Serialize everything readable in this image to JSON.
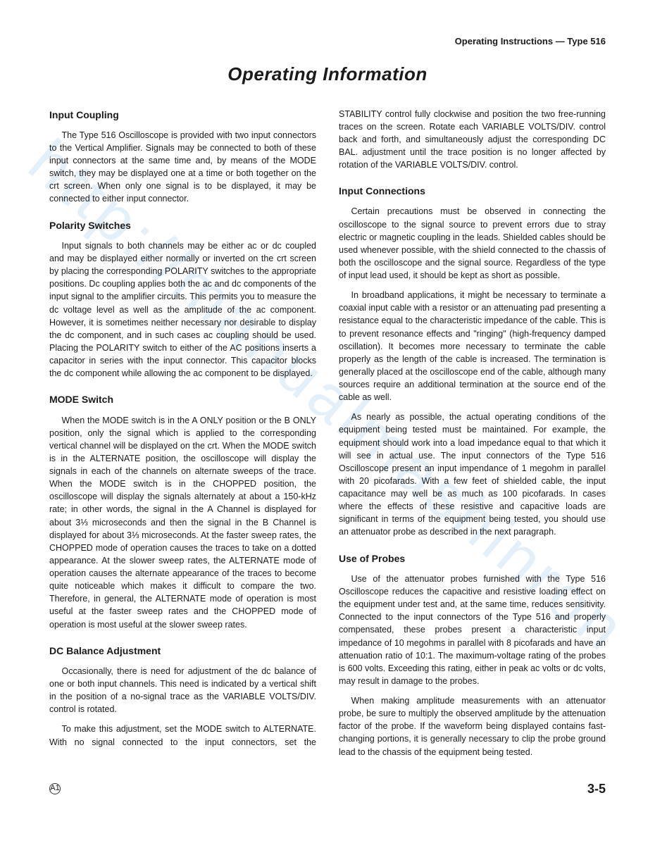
{
  "header": {
    "right": "Operating Instructions — Type 516"
  },
  "title": "Operating Information",
  "watermark": "http://manualmashinron",
  "sections": [
    {
      "heading": "Input Coupling",
      "paragraphs": [
        "The Type 516 Oscilloscope is provided with two input connectors to the Vertical Amplifier. Signals may be connected to both of these input connectors at the same time and, by means of the MODE switch, they may be displayed one at a time or both together on the crt screen. When only one signal is to be displayed, it may be connected to either input connector."
      ]
    },
    {
      "heading": "Polarity Switches",
      "paragraphs": [
        "Input signals to both channels may be either ac or dc coupled and may be displayed either normally or inverted on the crt screen by placing the corresponding POLARITY switches to the appropriate positions. Dc coupling applies both the ac and dc components of the input signal to the amplifier circuits. This permits you to measure the dc voltage level as well as the amplitude of the ac component. However, it is sometimes neither necessary nor desirable to display the dc component, and in such cases ac coupling should be used. Placing the POLARITY switch to either of the AC positions inserts a capacitor in series with the input connector. This capacitor blocks the dc component while allowing the ac component to be displayed."
      ]
    },
    {
      "heading": "MODE Switch",
      "paragraphs": [
        "When the MODE switch is in the A ONLY position or the B ONLY position, only the signal which is applied to the corresponding vertical channel will be displayed on the crt. When the MODE switch is in the ALTERNATE position, the oscilloscope will display the signals in each of the channels on alternate sweeps of the trace. When the MODE switch is in the CHOPPED position, the oscilloscope will display the signals alternately at about a 150-kHz rate; in other words, the signal in the A Channel is displayed for about 3⅓ microseconds and then the signal in the B Channel is displayed for about 3⅓ microseconds. At the faster sweep rates, the CHOPPED mode of operation causes the traces to take on a dotted appearance. At the slower sweep rates, the ALTERNATE mode of operation causes the alternate appearance of the traces to become quite noticeable which makes it difficult to compare the two. Therefore, in general, the ALTERNATE mode of operation is most useful at the faster sweep rates and the CHOPPED mode of operation is most useful at the slower sweep rates."
      ]
    },
    {
      "heading": "DC Balance Adjustment",
      "paragraphs": [
        "Occasionally, there is need for adjustment of the dc balance of one or both input channels. This need is indicated by a vertical shift in the position of a no-signal trace as the VARIABLE VOLTS/DIV. control is rotated.",
        "To make this adjustment, set the MODE switch to ALTERNATE. With no signal connected to the input connectors, set the STABILITY control fully clockwise and position the two free-running traces on the screen. Rotate each VARIABLE VOLTS/DIV. control back and forth, and simultaneously adjust the corresponding DC BAL. adjustment until the trace position is no longer affected by rotation of the VARIABLE VOLTS/DIV. control."
      ]
    },
    {
      "heading": "Input Connections",
      "paragraphs": [
        "Certain precautions must be observed in connecting the oscilloscope to the signal source to prevent errors due to stray electric or magnetic coupling in the leads. Shielded cables should be used whenever possible, with the shield connected to the chassis of both the oscilloscope and the signal source. Regardless of the type of input lead used, it should be kept as short as possible.",
        "In broadband applications, it might be necessary to terminate a coaxial input cable with a resistor or an attenuating pad presenting a resistance equal to the characteristic impedance of the cable. This is to prevent resonance effects and \"ringing\" (high-frequency damped oscillation). It becomes more necessary to terminate the cable properly as the length of the cable is increased. The termination is generally placed at the oscilloscope end of the cable, although many sources require an additional termination at the source end of the cable as well.",
        "As nearly as possible, the actual operating conditions of the equipment being tested must be maintained. For example, the equipment should work into a load impedance equal to that which it will see in actual use. The input connectors of the Type 516 Oscilloscope present an input impendance of 1 megohm in parallel with 20 picofarads. With a few feet of shielded cable, the input capacitance may well be as much as 100 picofarads. In cases where the effects of these resistive and capacitive loads are significant in terms of the equipment being tested, you should use an attenuator probe as described in the next paragraph."
      ]
    },
    {
      "heading": "Use of Probes",
      "paragraphs": [
        "Use of the attenuator probes furnished with the Type 516 Oscilloscope reduces the capacitive and resistive loading effect on the equipment under test and, at the same time, reduces sensitivity. Connected to the input connectors of the Type 516 and properly compensated, these probes present a characteristic input impedance of 10 megohms in parallel with 8 picofarads and have an attenuation ratio of 10:1. The maximum-voltage rating of the probes is 600 volts. Exceeding this rating, either in peak ac volts or dc volts, may result in damage to the probes.",
        "When making amplitude measurements with an attenuator probe, be sure to multiply the observed amplitude by the attenuation factor of the probe. If the waveform being displayed contains fast-changing portions, it is generally necessary to clip the probe ground lead to the chassis of the equipment being tested."
      ]
    }
  ],
  "footer": {
    "left": "A1",
    "right": "3-5"
  }
}
